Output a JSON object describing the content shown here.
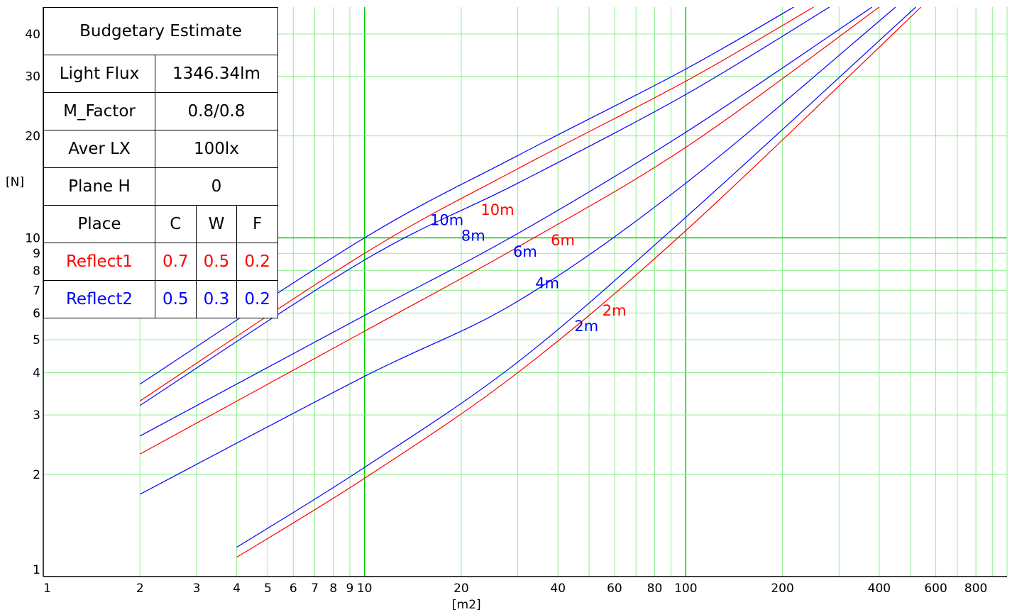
{
  "chart_data": {
    "type": "line",
    "xscale": "log",
    "yscale": "log",
    "xlim": [
      1,
      1000
    ],
    "ylim": [
      1,
      48
    ],
    "grid": true,
    "xlabel": "[m2]",
    "ylabel": "[N]",
    "x_ticks": [
      1,
      2,
      3,
      4,
      5,
      6,
      7,
      8,
      9,
      10,
      20,
      40,
      60,
      80,
      100,
      200,
      400,
      600,
      800
    ],
    "x_tick_labels": [
      "1",
      "2",
      "3",
      "4",
      "5",
      "6",
      "7",
      "8",
      "9",
      "10",
      "20",
      "40",
      "60",
      "80",
      "100",
      "200",
      "400",
      "600",
      "800"
    ],
    "y_ticks": [
      1,
      2,
      3,
      4,
      5,
      6,
      7,
      8,
      9,
      10,
      20,
      30,
      40
    ],
    "y_tick_labels": [
      "1",
      "2",
      "3",
      "4",
      "5",
      "6",
      "7",
      "8",
      "9",
      "10",
      "20",
      "30",
      "40"
    ],
    "series": [
      {
        "name": "10m",
        "color": "#0000ff",
        "x": [
          2,
          10,
          30,
          100,
          250
        ],
        "y": [
          3.7,
          10.0,
          17.5,
          31.5,
          52
        ],
        "label_at": [
          16,
          10.9
        ]
      },
      {
        "name": "10m",
        "color": "#ff0000",
        "x": [
          2,
          10,
          30,
          100,
          250
        ],
        "y": [
          3.3,
          9.0,
          16.0,
          29.0,
          48
        ],
        "label_at": [
          23,
          11.7
        ]
      },
      {
        "name": "8m",
        "color": "#0000ff",
        "x": [
          2,
          10,
          30,
          100,
          280
        ],
        "y": [
          3.2,
          8.6,
          14.5,
          26.5,
          48
        ],
        "label_at": [
          20,
          9.8
        ]
      },
      {
        "name": "6m",
        "color": "#0000ff",
        "x": [
          2,
          10,
          30,
          100,
          380
        ],
        "y": [
          2.6,
          5.9,
          10.3,
          20.5,
          48
        ],
        "label_at": [
          29,
          8.8
        ]
      },
      {
        "name": "6m",
        "color": "#ff0000",
        "x": [
          2,
          10,
          30,
          100,
          400
        ],
        "y": [
          2.3,
          5.3,
          9.4,
          18.5,
          48
        ],
        "label_at": [
          38,
          9.5
        ]
      },
      {
        "name": "4m",
        "color": "#0000ff",
        "x": [
          2,
          10,
          30,
          100,
          450
        ],
        "y": [
          1.75,
          3.9,
          6.5,
          14.5,
          48
        ],
        "label_at": [
          34,
          7.1
        ]
      },
      {
        "name": "2m",
        "color": "#0000ff",
        "x": [
          4,
          10,
          30,
          100,
          520
        ],
        "y": [
          1.22,
          2.1,
          4.3,
          11.5,
          48
        ],
        "label_at": [
          45,
          5.3
        ]
      },
      {
        "name": "2m",
        "color": "#ff0000",
        "x": [
          4,
          10,
          30,
          100,
          540
        ],
        "y": [
          1.14,
          1.95,
          4.0,
          10.5,
          48
        ],
        "label_at": [
          55,
          5.9
        ]
      }
    ]
  },
  "table": {
    "title": "Budgetary Estimate",
    "rows": [
      {
        "label": "Light Flux",
        "value": "1346.34lm"
      },
      {
        "label": "M_Factor",
        "value": "0.8/0.8"
      },
      {
        "label": "Aver LX",
        "value": "100lx"
      },
      {
        "label": "Plane H",
        "value": "0"
      }
    ],
    "place_header": {
      "label": "Place",
      "c": "C",
      "w": "W",
      "f": "F"
    },
    "reflect1": {
      "label": "Reflect1",
      "c": "0.7",
      "w": "0.5",
      "f": "0.2",
      "color": "#ff0000"
    },
    "reflect2": {
      "label": "Reflect2",
      "c": "0.5",
      "w": "0.3",
      "f": "0.2",
      "color": "#0000ff"
    }
  },
  "colors": {
    "grid_minor": "#90ee90",
    "grid_major": "#00cc00",
    "axis": "#000000"
  }
}
